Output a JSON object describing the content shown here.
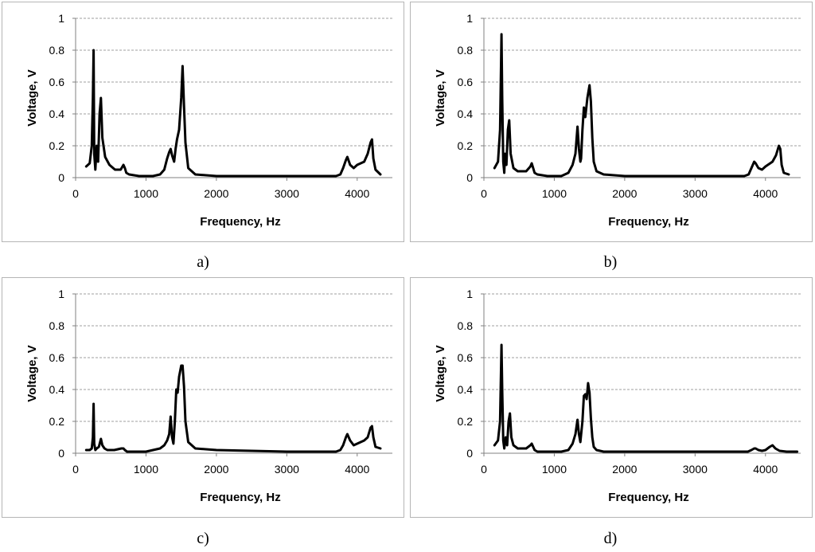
{
  "chart_data": [
    {
      "id": "a",
      "type": "line",
      "caption": "a)",
      "xlabel": "Frequency, Hz",
      "ylabel": "Voltage, V",
      "xlim": [
        0,
        4500
      ],
      "ylim": [
        0,
        1
      ],
      "xticks": [
        0,
        1000,
        2000,
        3000,
        4000
      ],
      "yticks": [
        0,
        0.2,
        0.4,
        0.6,
        0.8,
        1
      ],
      "grid": "horizontal dashed",
      "series": [
        {
          "name": "a",
          "x": [
            150,
            200,
            230,
            245,
            255,
            265,
            280,
            300,
            320,
            340,
            360,
            380,
            420,
            480,
            560,
            640,
            680,
            700,
            720,
            760,
            900,
            1100,
            1200,
            1260,
            1300,
            1330,
            1350,
            1370,
            1400,
            1420,
            1440,
            1470,
            1500,
            1520,
            1540,
            1560,
            1600,
            1700,
            2000,
            2500,
            3000,
            3500,
            3700,
            3760,
            3800,
            3840,
            3860,
            3900,
            3950,
            4000,
            4100,
            4150,
            4190,
            4210,
            4230,
            4260,
            4330
          ],
          "y": [
            0.07,
            0.09,
            0.2,
            0.5,
            0.8,
            0.15,
            0.05,
            0.2,
            0.1,
            0.4,
            0.5,
            0.25,
            0.13,
            0.08,
            0.05,
            0.05,
            0.08,
            0.06,
            0.03,
            0.02,
            0.01,
            0.01,
            0.02,
            0.05,
            0.12,
            0.16,
            0.18,
            0.14,
            0.1,
            0.18,
            0.24,
            0.3,
            0.5,
            0.7,
            0.45,
            0.22,
            0.06,
            0.02,
            0.01,
            0.01,
            0.01,
            0.01,
            0.01,
            0.02,
            0.06,
            0.11,
            0.13,
            0.08,
            0.06,
            0.08,
            0.1,
            0.15,
            0.22,
            0.24,
            0.12,
            0.05,
            0.02
          ]
        }
      ]
    },
    {
      "id": "b",
      "type": "line",
      "caption": "b)",
      "xlabel": "Frequency, Hz",
      "ylabel": "Voltage, V",
      "xlim": [
        0,
        4500
      ],
      "ylim": [
        0,
        1
      ],
      "xticks": [
        0,
        1000,
        2000,
        3000,
        4000
      ],
      "yticks": [
        0,
        0.2,
        0.4,
        0.6,
        0.8,
        1
      ],
      "grid": "horizontal dashed",
      "series": [
        {
          "name": "b",
          "x": [
            150,
            200,
            230,
            250,
            260,
            275,
            290,
            300,
            320,
            340,
            360,
            380,
            420,
            480,
            600,
            660,
            680,
            700,
            720,
            760,
            900,
            1100,
            1200,
            1260,
            1300,
            1330,
            1350,
            1370,
            1380,
            1400,
            1420,
            1440,
            1470,
            1500,
            1520,
            1540,
            1560,
            1600,
            1700,
            2000,
            2500,
            3000,
            3500,
            3700,
            3760,
            3800,
            3840,
            3860,
            3900,
            3950,
            4000,
            4100,
            4150,
            4190,
            4210,
            4230,
            4260,
            4330
          ],
          "y": [
            0.06,
            0.1,
            0.3,
            0.9,
            0.5,
            0.1,
            0.03,
            0.15,
            0.08,
            0.3,
            0.36,
            0.15,
            0.06,
            0.04,
            0.04,
            0.07,
            0.09,
            0.06,
            0.03,
            0.02,
            0.01,
            0.01,
            0.03,
            0.08,
            0.15,
            0.32,
            0.18,
            0.1,
            0.12,
            0.3,
            0.44,
            0.38,
            0.5,
            0.58,
            0.48,
            0.25,
            0.1,
            0.04,
            0.02,
            0.01,
            0.01,
            0.01,
            0.01,
            0.01,
            0.02,
            0.06,
            0.1,
            0.09,
            0.06,
            0.05,
            0.07,
            0.1,
            0.14,
            0.2,
            0.18,
            0.08,
            0.03,
            0.02
          ]
        }
      ]
    },
    {
      "id": "c",
      "type": "line",
      "caption": "c)",
      "xlabel": "Frequency, Hz",
      "ylabel": "Voltage, V",
      "xlim": [
        0,
        4500
      ],
      "ylim": [
        0,
        1
      ],
      "xticks": [
        0,
        1000,
        2000,
        3000,
        4000
      ],
      "yticks": [
        0,
        0.2,
        0.4,
        0.6,
        0.8,
        1
      ],
      "grid": "horizontal dashed",
      "series": [
        {
          "name": "c",
          "x": [
            150,
            200,
            230,
            245,
            255,
            265,
            280,
            300,
            330,
            360,
            380,
            410,
            450,
            550,
            650,
            680,
            700,
            730,
            800,
            1000,
            1100,
            1200,
            1260,
            1300,
            1330,
            1350,
            1370,
            1390,
            1410,
            1430,
            1450,
            1470,
            1500,
            1520,
            1540,
            1560,
            1600,
            1700,
            2000,
            2500,
            3000,
            3500,
            3700,
            3760,
            3800,
            3840,
            3860,
            3900,
            3950,
            4000,
            4100,
            4150,
            4190,
            4210,
            4230,
            4260,
            4330
          ],
          "y": [
            0.02,
            0.02,
            0.03,
            0.1,
            0.31,
            0.06,
            0.02,
            0.03,
            0.04,
            0.09,
            0.05,
            0.03,
            0.02,
            0.02,
            0.03,
            0.03,
            0.02,
            0.01,
            0.01,
            0.01,
            0.02,
            0.03,
            0.05,
            0.08,
            0.12,
            0.23,
            0.1,
            0.06,
            0.2,
            0.4,
            0.38,
            0.48,
            0.55,
            0.55,
            0.42,
            0.2,
            0.07,
            0.03,
            0.02,
            0.015,
            0.01,
            0.01,
            0.01,
            0.02,
            0.05,
            0.1,
            0.12,
            0.08,
            0.05,
            0.06,
            0.08,
            0.1,
            0.16,
            0.17,
            0.1,
            0.04,
            0.03
          ]
        }
      ]
    },
    {
      "id": "d",
      "type": "line",
      "caption": "d)",
      "xlabel": "Frequency, Hz",
      "ylabel": "Voltage, V",
      "xlim": [
        0,
        4500
      ],
      "ylim": [
        0,
        1
      ],
      "xticks": [
        0,
        1000,
        2000,
        3000,
        4000
      ],
      "yticks": [
        0,
        0.2,
        0.4,
        0.6,
        0.8,
        1
      ],
      "grid": "horizontal dashed",
      "series": [
        {
          "name": "d",
          "x": [
            150,
            200,
            230,
            250,
            260,
            275,
            290,
            310,
            330,
            350,
            370,
            390,
            420,
            480,
            600,
            660,
            680,
            700,
            720,
            760,
            900,
            1100,
            1200,
            1260,
            1300,
            1330,
            1350,
            1370,
            1400,
            1420,
            1440,
            1460,
            1480,
            1500,
            1520,
            1540,
            1560,
            1600,
            1700,
            2000,
            2500,
            3000,
            3500,
            3750,
            3800,
            3840,
            3860,
            3900,
            3950,
            4000,
            4060,
            4100,
            4140,
            4200,
            4300,
            4450
          ],
          "y": [
            0.05,
            0.08,
            0.2,
            0.68,
            0.4,
            0.08,
            0.03,
            0.1,
            0.05,
            0.2,
            0.25,
            0.1,
            0.05,
            0.03,
            0.03,
            0.05,
            0.06,
            0.04,
            0.02,
            0.01,
            0.01,
            0.01,
            0.02,
            0.06,
            0.12,
            0.21,
            0.12,
            0.07,
            0.2,
            0.36,
            0.37,
            0.34,
            0.44,
            0.38,
            0.22,
            0.1,
            0.04,
            0.02,
            0.01,
            0.01,
            0.01,
            0.01,
            0.01,
            0.01,
            0.02,
            0.03,
            0.03,
            0.02,
            0.015,
            0.02,
            0.04,
            0.05,
            0.03,
            0.015,
            0.01,
            0.01
          ]
        }
      ]
    }
  ]
}
